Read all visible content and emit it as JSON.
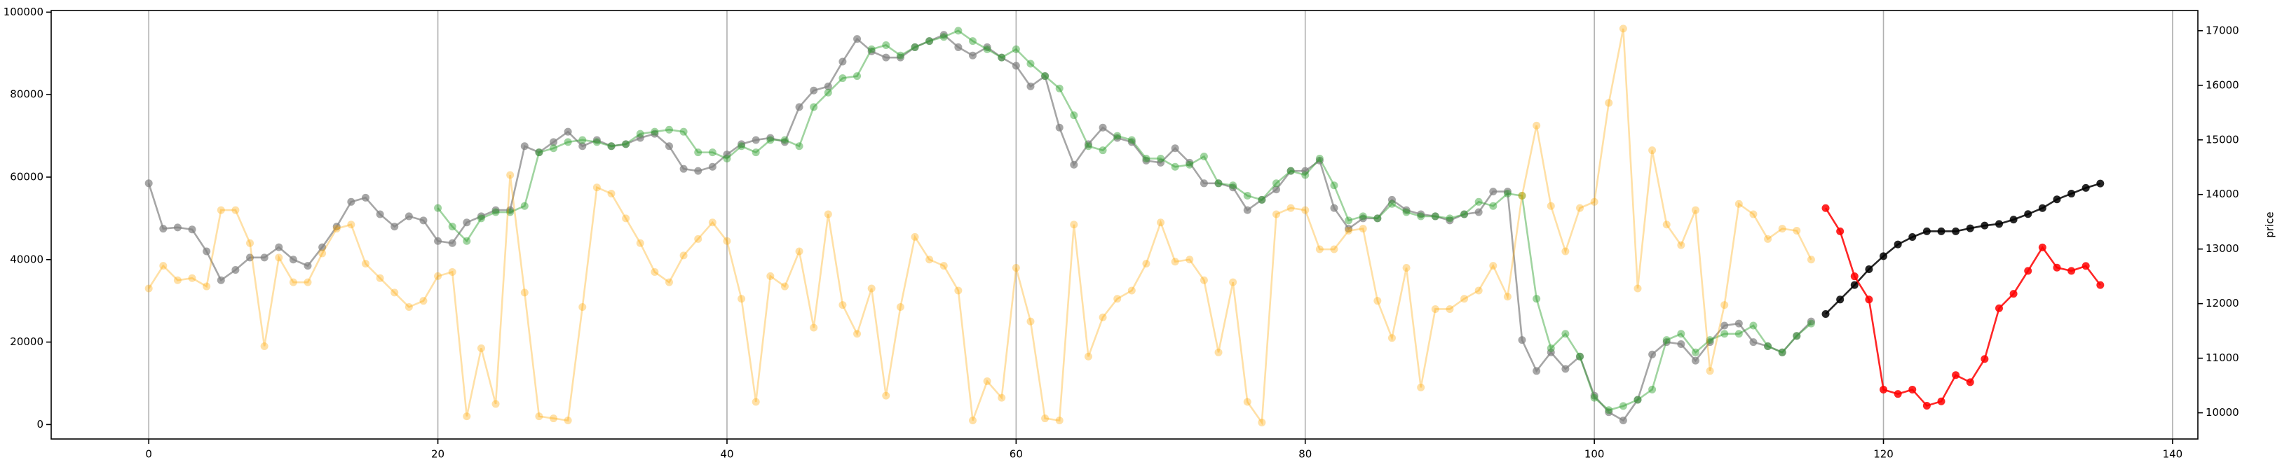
{
  "chart_data": {
    "type": "line",
    "xlim": [
      -6.75,
      141.75
    ],
    "xticks": [
      0,
      20,
      40,
      60,
      80,
      100,
      120,
      140
    ],
    "ylim": [
      -3500,
      100400
    ],
    "yticks": [
      0,
      20000,
      40000,
      60000,
      80000,
      100000
    ],
    "y2lim": [
      9520,
      17370
    ],
    "y2ticks": [
      10000,
      11000,
      12000,
      13000,
      14000,
      15000,
      16000,
      17000
    ],
    "y2label": "price",
    "grid": "x",
    "series": [
      {
        "color": "#808080",
        "alpha": 0.7,
        "x": [
          0,
          1,
          2,
          3,
          4,
          5,
          6,
          7,
          8,
          9,
          10,
          11,
          12,
          13,
          14,
          15,
          16,
          17,
          18,
          19,
          20,
          21,
          22,
          23,
          24,
          25,
          26,
          27,
          28,
          29,
          30,
          31,
          32,
          33,
          34,
          35,
          36,
          37,
          38,
          39,
          40,
          41,
          42,
          43,
          44,
          45,
          46,
          47,
          48,
          49,
          50,
          51,
          52,
          53,
          54,
          55,
          56,
          57,
          58,
          59,
          60,
          61,
          62,
          63,
          64,
          65,
          66,
          67,
          68,
          69,
          70,
          71,
          72,
          73,
          74,
          75,
          76,
          77,
          78,
          79,
          80,
          81,
          82,
          83,
          84,
          85,
          86,
          87,
          88,
          89,
          90,
          91,
          92,
          93,
          94,
          95,
          96,
          97,
          98,
          99,
          100,
          101,
          102,
          103,
          104,
          105,
          106,
          107,
          108,
          109,
          110,
          111,
          112,
          113,
          114,
          115
        ],
        "values": [
          58500,
          47500,
          47800,
          47300,
          42000,
          35000,
          37500,
          40500,
          40500,
          43000,
          40000,
          38500,
          43000,
          48000,
          54000,
          55000,
          51000,
          48000,
          50500,
          49500,
          44500,
          44000,
          49000,
          50500,
          52000,
          52000,
          67500,
          66000,
          68500,
          71000,
          67500,
          69000,
          67500,
          68000,
          69500,
          70500,
          67500,
          62000,
          61500,
          62500,
          65500,
          68000,
          69000,
          69500,
          68500,
          77000,
          81000,
          82000,
          88000,
          93500,
          90500,
          89000,
          89000,
          91500,
          93000,
          94500,
          91500,
          89500,
          91500,
          89000,
          87000,
          82000,
          84500,
          72000,
          63000,
          68000,
          72000,
          69500,
          68500,
          64000,
          63500,
          67000,
          63500,
          58500,
          58500,
          57500,
          52000,
          54500,
          57000,
          61500,
          61500,
          64000,
          52500,
          47500,
          50000,
          50000,
          54500,
          52000,
          51000,
          50500,
          49500,
          51000,
          51500,
          56500,
          56500,
          20500,
          13000,
          17500,
          13500,
          16500,
          7000,
          3000,
          1000,
          6000,
          17000,
          20000,
          19500,
          15500,
          20000,
          24000,
          24500,
          20000,
          19000,
          17500,
          21500,
          25000
        ]
      },
      {
        "color": "#2ca02c",
        "alpha": 0.45,
        "x": [
          20,
          21,
          22,
          23,
          24,
          25,
          26,
          27,
          28,
          29,
          30,
          31,
          32,
          33,
          34,
          35,
          36,
          37,
          38,
          39,
          40,
          41,
          42,
          43,
          44,
          45,
          46,
          47,
          48,
          49,
          50,
          51,
          52,
          53,
          54,
          55,
          56,
          57,
          58,
          59,
          60,
          61,
          62,
          63,
          64,
          65,
          66,
          67,
          68,
          69,
          70,
          71,
          72,
          73,
          74,
          75,
          76,
          77,
          78,
          79,
          80,
          81,
          82,
          83,
          84,
          85,
          86,
          87,
          88,
          89,
          90,
          91,
          92,
          93,
          94,
          95,
          96,
          97,
          98,
          99,
          100,
          101,
          102,
          103,
          104,
          105,
          106,
          107,
          108,
          109,
          110,
          111,
          112,
          113,
          114,
          115
        ],
        "values": [
          52500,
          48000,
          44500,
          50000,
          51500,
          51500,
          53000,
          66000,
          67000,
          68500,
          69000,
          68500,
          67500,
          68000,
          70500,
          71000,
          71500,
          71000,
          66000,
          66000,
          64500,
          67500,
          66000,
          69000,
          69000,
          67500,
          77000,
          80500,
          84000,
          84500,
          91000,
          92000,
          89500,
          91500,
          93000,
          94000,
          95500,
          93000,
          91000,
          89000,
          91000,
          87500,
          84500,
          81500,
          75000,
          67500,
          66500,
          70000,
          69000,
          64500,
          64500,
          62500,
          63000,
          65000,
          58500,
          58000,
          55500,
          54500,
          58500,
          61500,
          60500,
          64500,
          58000,
          49500,
          50500,
          50000,
          53500,
          51500,
          50500,
          50500,
          50000,
          51000,
          54000,
          53000,
          56000,
          55500,
          30500,
          18500,
          22000,
          16500,
          6500,
          3500,
          4500,
          6000,
          8500,
          20500,
          22000,
          17500,
          20500,
          22000,
          22000,
          24000,
          19000,
          17500,
          21500,
          24500
        ]
      },
      {
        "color": "#ffa500",
        "alpha": 0.35,
        "x": [
          0,
          1,
          2,
          3,
          4,
          5,
          6,
          7,
          8,
          9,
          10,
          11,
          12,
          13,
          14,
          15,
          16,
          17,
          18,
          19,
          20,
          21,
          22,
          23,
          24,
          25,
          26,
          27,
          28,
          29,
          30,
          31,
          32,
          33,
          34,
          35,
          36,
          37,
          38,
          39,
          40,
          41,
          42,
          43,
          44,
          45,
          46,
          47,
          48,
          49,
          50,
          51,
          52,
          53,
          54,
          55,
          56,
          57,
          58,
          59,
          60,
          61,
          62,
          63,
          64,
          65,
          66,
          67,
          68,
          69,
          70,
          71,
          72,
          73,
          74,
          75,
          76,
          77,
          78,
          79,
          80,
          81,
          82,
          83,
          84,
          85,
          86,
          87,
          88,
          89,
          90,
          91,
          92,
          93,
          94,
          95,
          96,
          97,
          98,
          99,
          100,
          101,
          102,
          103,
          104,
          105,
          106,
          107,
          108,
          109,
          110,
          111,
          112,
          113,
          114,
          115
        ],
        "values": [
          33000,
          38500,
          35000,
          35500,
          33500,
          52000,
          52000,
          44000,
          19000,
          40500,
          34500,
          34500,
          41500,
          47500,
          48500,
          39000,
          35500,
          32000,
          28500,
          30000,
          36000,
          37000,
          2000,
          18500,
          5000,
          60500,
          32000,
          2000,
          1500,
          1000,
          28500,
          57500,
          56000,
          50000,
          44000,
          37000,
          34500,
          41000,
          45000,
          49000,
          44500,
          30500,
          5500,
          36000,
          33500,
          42000,
          23500,
          51000,
          29000,
          22000,
          33000,
          7000,
          28500,
          45500,
          40000,
          38500,
          32500,
          1000,
          10500,
          6500,
          38000,
          25000,
          1500,
          1000,
          48500,
          16500,
          26000,
          30500,
          32500,
          39000,
          49000,
          39500,
          40000,
          35000,
          17500,
          34500,
          5500,
          500,
          51000,
          52500,
          52000,
          42500,
          42500,
          47000,
          47500,
          30000,
          21000,
          38000,
          9000,
          28000,
          28000,
          30500,
          32500,
          38500,
          31000,
          55500,
          72500,
          53000,
          42000,
          52500,
          54000,
          78000,
          96000,
          33000,
          66500,
          48500,
          43500,
          52000,
          13000,
          29000,
          53500,
          51000,
          45000,
          47500,
          47000,
          40000
        ]
      },
      {
        "color": "#000000",
        "alpha": 0.85,
        "axis": "y2",
        "x": [
          116,
          117,
          118,
          119,
          120,
          121,
          122,
          123,
          124,
          125,
          126,
          127,
          128,
          129,
          130,
          131,
          132,
          133,
          134,
          135
        ],
        "values": [
          11810,
          12075,
          12340,
          12630,
          12870,
          13085,
          13220,
          13325,
          13325,
          13325,
          13380,
          13430,
          13460,
          13540,
          13640,
          13750,
          13910,
          14015,
          14120,
          14200
        ]
      },
      {
        "color": "#ff0000",
        "alpha": 0.85,
        "axis": "y2",
        "x": [
          116,
          117,
          118,
          119,
          120,
          121,
          122,
          123,
          124,
          125,
          126,
          127,
          128,
          129,
          130,
          131,
          132,
          133,
          134,
          135
        ],
        "values": [
          13750,
          13325,
          12500,
          12075,
          10425,
          10345,
          10425,
          10130,
          10210,
          10690,
          10560,
          10985,
          11915,
          12180,
          12600,
          13030,
          12660,
          12600,
          12690,
          12340
        ]
      }
    ]
  }
}
